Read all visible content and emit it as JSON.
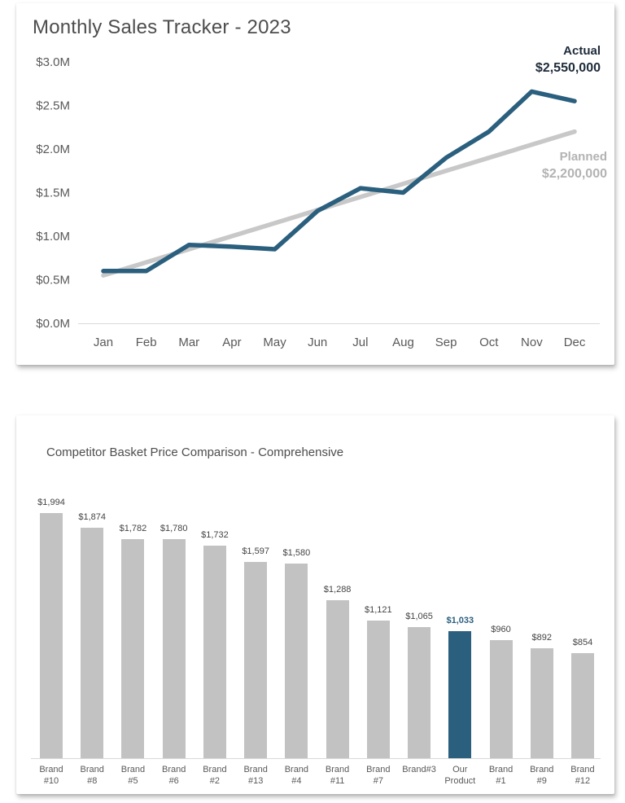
{
  "chart_data": [
    {
      "type": "line",
      "title": "Monthly Sales Tracker - 2023",
      "categories": [
        "Jan",
        "Feb",
        "Mar",
        "Apr",
        "May",
        "Jun",
        "Jul",
        "Aug",
        "Sep",
        "Oct",
        "Nov",
        "Dec"
      ],
      "ylim": [
        0,
        3000000
      ],
      "grid": false,
      "y_ticks": [
        {
          "label": "$3.0M",
          "value": 3000000
        },
        {
          "label": "$2.5M",
          "value": 2500000
        },
        {
          "label": "$2.0M",
          "value": 2000000
        },
        {
          "label": "$1.5M",
          "value": 1500000
        },
        {
          "label": "$1.0M",
          "value": 1000000
        },
        {
          "label": "$0.5M",
          "value": 500000
        },
        {
          "label": "$0.0M",
          "value": 0
        }
      ],
      "series": [
        {
          "name": "Planned",
          "color": "#c8c8c8",
          "end_label": "$2,200,000",
          "values": [
            550000,
            700000,
            850000,
            1000000,
            1150000,
            1300000,
            1450000,
            1600000,
            1750000,
            1900000,
            2050000,
            2200000
          ]
        },
        {
          "name": "Actual",
          "color": "#2b5f7e",
          "end_label": "$2,550,000",
          "values": [
            600000,
            600000,
            900000,
            880000,
            850000,
            1290000,
            1550000,
            1500000,
            1900000,
            2200000,
            2660000,
            2550000
          ]
        }
      ]
    },
    {
      "type": "bar",
      "title": "Competitor Basket Price Comparison - Comprehensive",
      "colors": {
        "bar": "#c3c2c2",
        "highlight": "#2b5f7e"
      },
      "bars": [
        {
          "label": "Brand #10",
          "label_lines": [
            "Brand",
            "#10"
          ],
          "value": 1994,
          "value_label": "$1,994",
          "highlight": false
        },
        {
          "label": "Brand #8",
          "label_lines": [
            "Brand",
            "#8"
          ],
          "value": 1874,
          "value_label": "$1,874",
          "highlight": false
        },
        {
          "label": "Brand #5",
          "label_lines": [
            "Brand",
            "#5"
          ],
          "value": 1782,
          "value_label": "$1,782",
          "highlight": false
        },
        {
          "label": "Brand #6",
          "label_lines": [
            "Brand",
            "#6"
          ],
          "value": 1780,
          "value_label": "$1,780",
          "highlight": false
        },
        {
          "label": "Brand #2",
          "label_lines": [
            "Brand",
            "#2"
          ],
          "value": 1732,
          "value_label": "$1,732",
          "highlight": false
        },
        {
          "label": "Brand #13",
          "label_lines": [
            "Brand",
            "#13"
          ],
          "value": 1597,
          "value_label": "$1,597",
          "highlight": false
        },
        {
          "label": "Brand #4",
          "label_lines": [
            "Brand",
            "#4"
          ],
          "value": 1580,
          "value_label": "$1,580",
          "highlight": false
        },
        {
          "label": "Brand #11",
          "label_lines": [
            "Brand",
            "#11"
          ],
          "value": 1288,
          "value_label": "$1,288",
          "highlight": false
        },
        {
          "label": "Brand #7",
          "label_lines": [
            "Brand",
            "#7"
          ],
          "value": 1121,
          "value_label": "$1,121",
          "highlight": false
        },
        {
          "label": "Brand#3",
          "label_lines": [
            "Brand#3"
          ],
          "value": 1065,
          "value_label": "$1,065",
          "highlight": false
        },
        {
          "label": "Our Product",
          "label_lines": [
            "Our",
            "Product"
          ],
          "value": 1033,
          "value_label": "$1,033",
          "highlight": true
        },
        {
          "label": "Brand #1",
          "label_lines": [
            "Brand",
            "#1"
          ],
          "value": 960,
          "value_label": "$960",
          "highlight": false
        },
        {
          "label": "Brand #9",
          "label_lines": [
            "Brand",
            "#9"
          ],
          "value": 892,
          "value_label": "$892",
          "highlight": false
        },
        {
          "label": "Brand #12",
          "label_lines": [
            "Brand",
            "#12"
          ],
          "value": 854,
          "value_label": "$854",
          "highlight": false
        }
      ]
    }
  ]
}
